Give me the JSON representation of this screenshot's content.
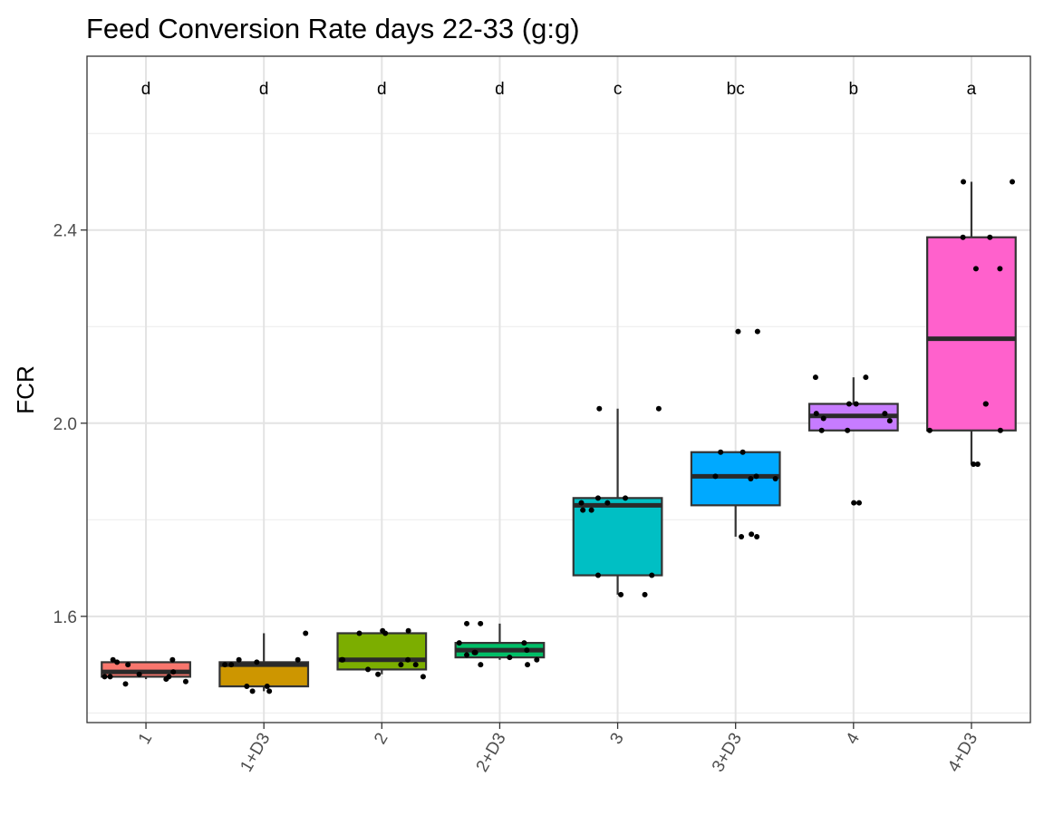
{
  "chart_data": {
    "type": "box",
    "title": "Feed Conversion Rate days 22-33 (g:g)",
    "xlabel": "",
    "ylabel": "FCR",
    "ylim": [
      1.38,
      2.76
    ],
    "yticks": [
      1.6,
      2.0,
      2.4
    ],
    "ytick_labels": [
      "1.6",
      "2.0",
      "2.4"
    ],
    "minor_gridlines": [
      1.4,
      1.8,
      2.2,
      2.6
    ],
    "grid": true,
    "legend": "none",
    "categories": [
      "1",
      "1+D3",
      "2",
      "2+D3",
      "3",
      "3+D3",
      "4",
      "4+D3"
    ],
    "significance_letters": [
      "d",
      "d",
      "d",
      "d",
      "c",
      "bc",
      "b",
      "a"
    ],
    "colors": [
      "#F8766D",
      "#CD9600",
      "#7CAE00",
      "#00BE67",
      "#00BFC4",
      "#00A9FF",
      "#C77CFF",
      "#FF61CC"
    ],
    "boxes": [
      {
        "category": "1",
        "whisker_low": 1.47,
        "q1": 1.475,
        "median": 1.485,
        "q3": 1.505,
        "whisker_high": 1.505
      },
      {
        "category": "1+D3",
        "whisker_low": 1.445,
        "q1": 1.455,
        "median": 1.5,
        "q3": 1.505,
        "whisker_high": 1.565
      },
      {
        "category": "2",
        "whisker_low": 1.48,
        "q1": 1.49,
        "median": 1.51,
        "q3": 1.565,
        "whisker_high": 1.565
      },
      {
        "category": "2+D3",
        "whisker_low": 1.51,
        "q1": 1.515,
        "median": 1.53,
        "q3": 1.545,
        "whisker_high": 1.585
      },
      {
        "category": "3",
        "whisker_low": 1.645,
        "q1": 1.685,
        "median": 1.83,
        "q3": 1.845,
        "whisker_high": 2.03
      },
      {
        "category": "3+D3",
        "whisker_low": 1.765,
        "q1": 1.83,
        "median": 1.89,
        "q3": 1.94,
        "whisker_high": 1.94
      },
      {
        "category": "4",
        "whisker_low": 1.985,
        "q1": 1.985,
        "median": 2.015,
        "q3": 2.04,
        "whisker_high": 2.095
      },
      {
        "category": "4+D3",
        "whisker_low": 1.915,
        "q1": 1.985,
        "median": 2.175,
        "q3": 2.385,
        "whisker_high": 2.5
      }
    ],
    "points": [
      {
        "category": "1",
        "y": [
          1.47,
          1.475,
          1.48,
          1.485,
          1.505,
          1.51,
          1.51,
          1.465,
          1.5,
          1.475,
          1.475,
          1.46
        ]
      },
      {
        "category": "1+D3",
        "y": [
          1.445,
          1.445,
          1.455,
          1.455,
          1.5,
          1.5,
          1.51,
          1.51,
          1.505,
          1.565
        ]
      },
      {
        "category": "2",
        "y": [
          1.48,
          1.49,
          1.5,
          1.51,
          1.51,
          1.51,
          1.565,
          1.565,
          1.57,
          1.57,
          1.5,
          1.475
        ]
      },
      {
        "category": "2+D3",
        "y": [
          1.5,
          1.51,
          1.515,
          1.52,
          1.525,
          1.53,
          1.545,
          1.545,
          1.585,
          1.585,
          1.5,
          1.525
        ]
      },
      {
        "category": "3",
        "y": [
          1.645,
          1.645,
          1.685,
          1.685,
          1.82,
          1.82,
          1.835,
          1.835,
          1.845,
          1.845,
          2.03,
          2.03
        ]
      },
      {
        "category": "3+D3",
        "y": [
          1.765,
          1.765,
          1.77,
          1.885,
          1.885,
          1.89,
          1.89,
          1.94,
          1.94,
          2.19,
          2.19
        ]
      },
      {
        "category": "4",
        "y": [
          1.835,
          1.835,
          1.985,
          1.985,
          2.005,
          2.01,
          2.02,
          2.02,
          2.04,
          2.04,
          2.095,
          2.095
        ]
      },
      {
        "category": "4+D3",
        "y": [
          1.915,
          1.915,
          1.985,
          1.985,
          2.04,
          2.04,
          2.32,
          2.32,
          2.385,
          2.385,
          2.5,
          2.5
        ]
      }
    ]
  }
}
